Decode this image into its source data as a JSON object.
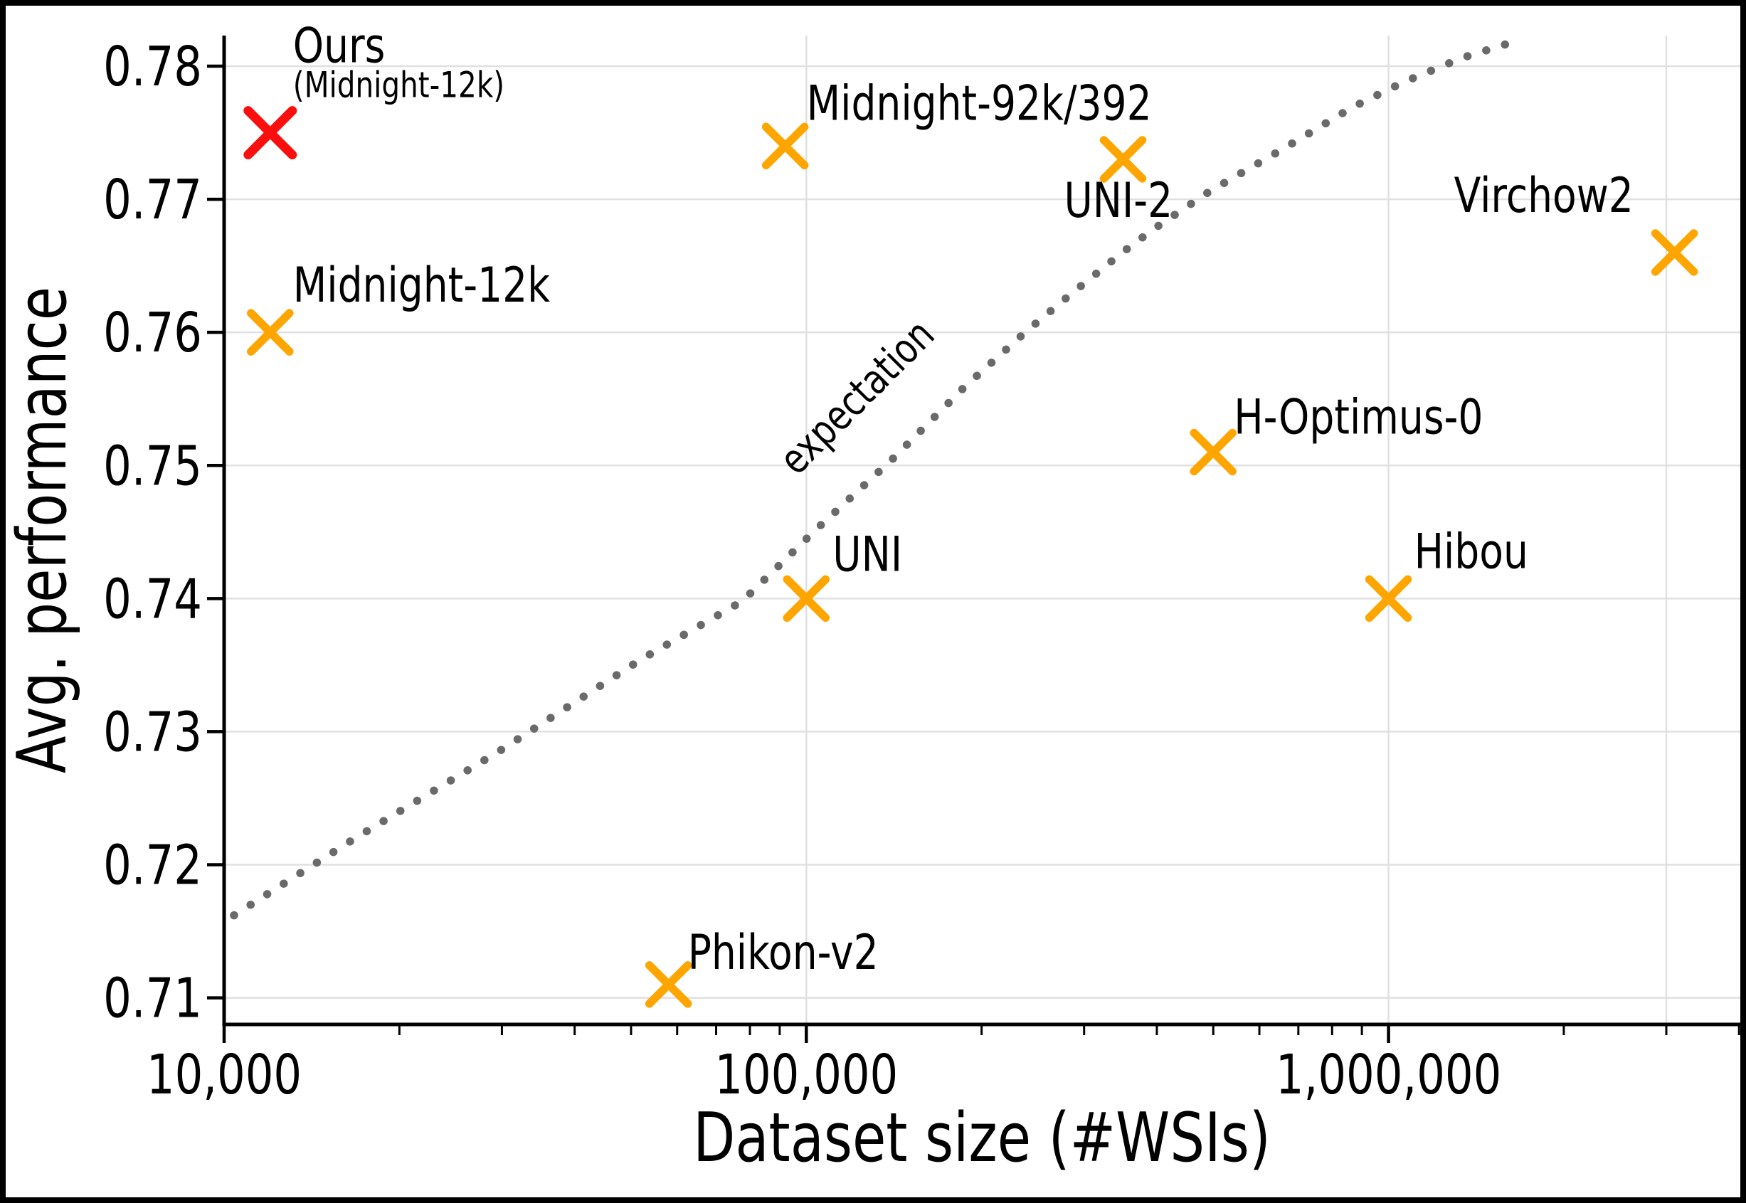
{
  "figure": {
    "background": "#ffffff",
    "frame_color": "#000000"
  },
  "chart_data": {
    "type": "scatter",
    "title": "",
    "xlabel": "Dataset size (#WSIs)",
    "ylabel": "Avg. performance",
    "x_scale": "log",
    "xlim": [
      10000,
      4020000
    ],
    "ylim": [
      0.708,
      0.7823
    ],
    "grid": true,
    "legend": "none",
    "colors": {
      "default_point": "#ffa500",
      "highlight_point": "#fa0f0f",
      "gridline": "#e0e0e0",
      "axis": "#000000",
      "curve": "#6a6a6a",
      "annotation": "#7c7c7c",
      "text": "#000000"
    },
    "x_ticks": [
      {
        "value": 10000,
        "label": "10,000"
      },
      {
        "value": 100000,
        "label": "100,000"
      },
      {
        "value": 1000000,
        "label": "1,000,000"
      }
    ],
    "y_ticks": [
      {
        "value": 0.71,
        "label": "0.71"
      },
      {
        "value": 0.72,
        "label": "0.72"
      },
      {
        "value": 0.73,
        "label": "0.73"
      },
      {
        "value": 0.74,
        "label": "0.74"
      },
      {
        "value": 0.75,
        "label": "0.75"
      },
      {
        "value": 0.76,
        "label": "0.76"
      },
      {
        "value": 0.77,
        "label": "0.77"
      },
      {
        "value": 0.78,
        "label": "0.78"
      }
    ],
    "x_gridlines": [
      100000,
      1000000,
      3000000
    ],
    "points": [
      {
        "name": "Ours",
        "sublabel": "(Midnight-12k)",
        "wsis": 12000,
        "performance": 0.775,
        "highlight": true,
        "label_offset": [
          32,
          -149
        ]
      },
      {
        "name": "Midnight-12k",
        "wsis": 12000,
        "performance": 0.76,
        "highlight": false,
        "label_offset": [
          32,
          -93
        ]
      },
      {
        "name": "Midnight-92k/392",
        "wsis": 92000,
        "performance": 0.774,
        "highlight": false,
        "label_offset": [
          30,
          -87
        ]
      },
      {
        "name": "Phikon-v2",
        "wsis": 58000,
        "performance": 0.711,
        "highlight": false,
        "label_offset": [
          27,
          -72
        ]
      },
      {
        "name": "UNI",
        "wsis": 100000,
        "performance": 0.74,
        "highlight": false,
        "label_offset": [
          37,
          -89
        ]
      },
      {
        "name": "UNI-2",
        "wsis": 350000,
        "performance": 0.773,
        "highlight": false,
        "label_offset": [
          -83,
          31
        ]
      },
      {
        "name": "H-Optimus-0",
        "wsis": 500000,
        "performance": 0.751,
        "highlight": false,
        "label_offset": [
          29,
          -76
        ]
      },
      {
        "name": "Hibou",
        "wsis": 1000000,
        "performance": 0.74,
        "highlight": false,
        "label_offset": [
          36,
          -93
        ]
      },
      {
        "name": "Virchow2",
        "wsis": 3100000,
        "performance": 0.766,
        "highlight": false,
        "label_offset": [
          -310,
          -107
        ]
      }
    ],
    "expectation_curve": {
      "label": "expectation",
      "style": "dotted",
      "points": [
        [
          10400,
          0.7162
        ],
        [
          16800,
          0.722
        ],
        [
          29600,
          0.7285
        ],
        [
          51900,
          0.7354
        ],
        [
          77600,
          0.7398
        ],
        [
          104000,
          0.7452
        ],
        [
          140000,
          0.7504
        ],
        [
          187000,
          0.7559
        ],
        [
          239000,
          0.7601
        ],
        [
          287000,
          0.763
        ],
        [
          349000,
          0.766
        ],
        [
          396000,
          0.7678
        ],
        [
          493000,
          0.7706
        ],
        [
          654000,
          0.7737
        ],
        [
          866000,
          0.7769
        ],
        [
          1061000,
          0.7788
        ],
        [
          1333000,
          0.7806
        ],
        [
          1688000,
          0.782
        ]
      ]
    },
    "annotation": {
      "text": "expectation",
      "x": 127000,
      "y": 0.7544,
      "rotation": -45
    }
  }
}
